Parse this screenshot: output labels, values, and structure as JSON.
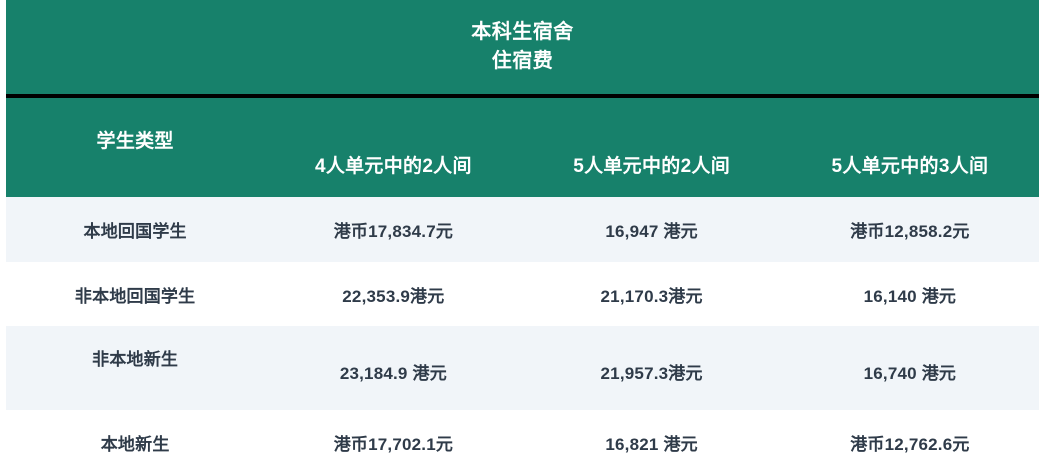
{
  "chart_data": {
    "type": "table",
    "title": "本科生宿舍",
    "subtitle": "住宿费",
    "columns": [
      "学生类型",
      "4人单元中的2人间",
      "5人单元中的2人间",
      "5人单元中的3人间"
    ],
    "rows": [
      [
        "本地回国学生",
        "港币17,834.7元",
        "16,947 港元",
        "港币12,858.2元"
      ],
      [
        "非本地回国学生",
        "22,353.9港元",
        "21,170.3港元",
        "16,140 港元"
      ],
      [
        "非本地新生",
        "23,184.9 港元",
        "21,957.3港元",
        "16,740 港元"
      ],
      [
        "本地新生",
        "港币17,702.1元",
        "16,821 港元",
        "港币12,762.6元"
      ]
    ],
    "values_hkd": [
      [
        17834.7,
        16947,
        12858.2
      ],
      [
        22353.9,
        21170.3,
        16140
      ],
      [
        23184.9,
        21957.3,
        16740
      ],
      [
        17702.1,
        16821,
        12762.6
      ]
    ],
    "layout_hints": {
      "grid": false,
      "alternating_rows": true,
      "header_position": "top"
    }
  },
  "colors": {
    "header_bg": "#17816B",
    "divider": "#000000",
    "row_alt_bg": "#F1F5F9",
    "row_bg": "#FFFFFF",
    "header_text": "#FFFFFF",
    "cell_text": "#2F3B49"
  }
}
